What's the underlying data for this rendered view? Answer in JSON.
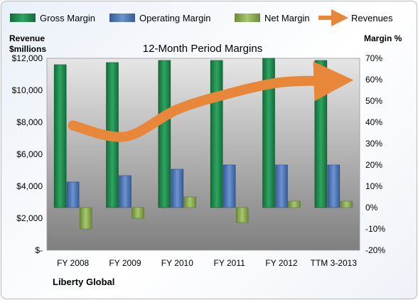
{
  "chart_data": {
    "type": "bar",
    "title": "12-Month Period Margins",
    "company": "Liberty Global",
    "ylabel_left": [
      "Revenue",
      "$millions"
    ],
    "ylabel_right": "Margin %",
    "categories": [
      "FY 2008",
      "FY 2009",
      "FY 2010",
      "FY 2011",
      "FY 2012",
      "TTM 3-2013"
    ],
    "left_axis": {
      "range": [
        0,
        12000
      ],
      "ticks": [
        0,
        2000,
        4000,
        6000,
        8000,
        10000,
        12000
      ],
      "tick_labels": [
        "$-",
        "$2,000",
        "$4,000",
        "$6,000",
        "$8,000",
        "$10,000",
        "$12,000"
      ]
    },
    "right_axis": {
      "range": [
        -20,
        70
      ],
      "ticks": [
        -20,
        -10,
        0,
        10,
        20,
        30,
        40,
        50,
        60,
        70
      ],
      "tick_labels": [
        "-20%",
        "-10%",
        "0%",
        "10%",
        "20%",
        "30%",
        "40%",
        "50%",
        "60%",
        "70%"
      ]
    },
    "series": [
      {
        "name": "Gross Margin",
        "type": "bar",
        "axis": "right",
        "color": "#1f8a4c",
        "values": [
          67,
          68,
          69,
          69,
          70,
          69
        ]
      },
      {
        "name": "Operating Margin",
        "type": "bar",
        "axis": "right",
        "color": "#4f76b4",
        "values": [
          12,
          15,
          18,
          20,
          20,
          20
        ]
      },
      {
        "name": "Net Margin",
        "type": "bar",
        "axis": "right",
        "color": "#8fae55",
        "values": [
          -10,
          -5,
          5,
          -7,
          3,
          3
        ]
      },
      {
        "name": "Revenues",
        "type": "line",
        "axis": "left",
        "color": "#e8873a",
        "values": [
          7800,
          7100,
          8800,
          9800,
          10500,
          10600
        ]
      }
    ],
    "grid": false,
    "legend_position": "top"
  }
}
